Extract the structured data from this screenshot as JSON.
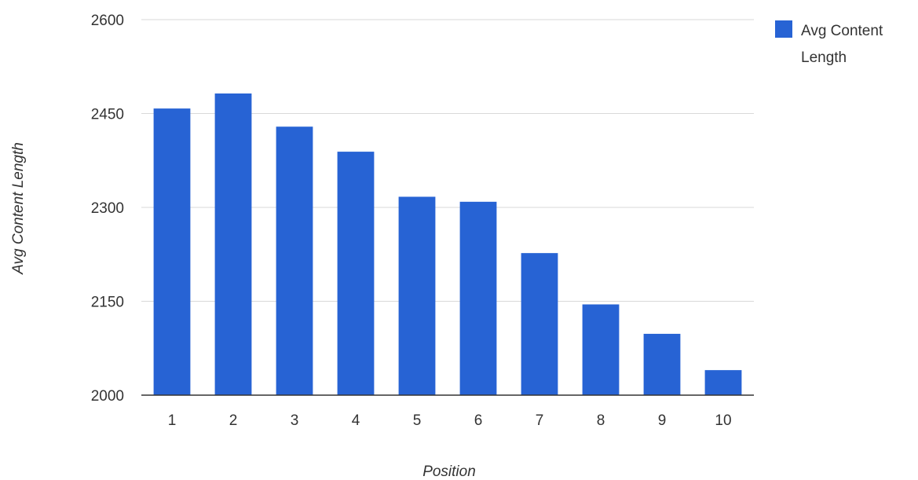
{
  "chart_data": {
    "type": "bar",
    "title": "",
    "xlabel": "Position",
    "ylabel": "Avg Content Length",
    "categories": [
      "1",
      "2",
      "3",
      "4",
      "5",
      "6",
      "7",
      "8",
      "9",
      "10"
    ],
    "series": [
      {
        "name": "Avg Content Length",
        "color": "#2763d4",
        "values": [
          2458,
          2482,
          2429,
          2389,
          2317,
          2309,
          2227,
          2145,
          2098,
          2040
        ]
      }
    ],
    "ylim": [
      2000,
      2600
    ],
    "yticks": [
      "2000",
      "2150",
      "2300",
      "2450",
      "2600"
    ],
    "grid": true,
    "legend": {
      "position": "top-right",
      "lines": [
        "Avg Content",
        "Length"
      ]
    }
  }
}
